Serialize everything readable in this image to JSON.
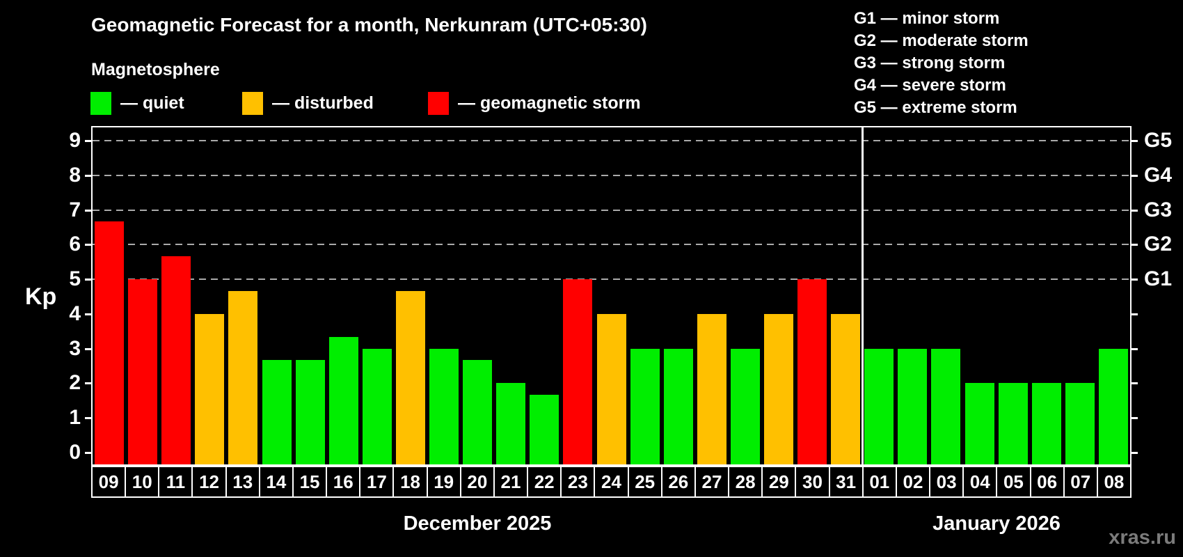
{
  "header": {
    "title": "Geomagnetic Forecast for a month, Nerkunram (UTC+05:30)",
    "subtitle": "Magnetosphere"
  },
  "legend": {
    "items": [
      {
        "status": "quiet",
        "label": "— quiet",
        "color": "#00ee00"
      },
      {
        "status": "disturbed",
        "label": "— disturbed",
        "color": "#ffc000"
      },
      {
        "status": "storm",
        "label": "— geomagnetic storm",
        "color": "#ff0000"
      }
    ]
  },
  "g_scale": [
    "G1 — minor storm",
    "G2 — moderate storm",
    "G3 — strong storm",
    "G4 — severe storm",
    "G5 — extreme storm"
  ],
  "watermark": "xras.ru",
  "chart_data": {
    "type": "bar",
    "title": "Geomagnetic Forecast for a month, Nerkunram (UTC+05:30)",
    "ylabel": "Kp",
    "ylim": [
      0,
      9
    ],
    "yticks": [
      0,
      1,
      2,
      3,
      4,
      5,
      6,
      7,
      8,
      9
    ],
    "gridlines_at": [
      5,
      6,
      7,
      8,
      9
    ],
    "grid": "horizontal dashed at storm levels only",
    "legend_position": "top-left",
    "right_axis_labels": [
      {
        "kp": 5,
        "label": "G1"
      },
      {
        "kp": 6,
        "label": "G2"
      },
      {
        "kp": 7,
        "label": "G3"
      },
      {
        "kp": 8,
        "label": "G4"
      },
      {
        "kp": 9,
        "label": "G5"
      }
    ],
    "status_colors": {
      "quiet": "#00ee00",
      "disturbed": "#ffc000",
      "storm": "#ff0000"
    },
    "groups": [
      {
        "label": "December 2025",
        "days": [
          "09",
          "10",
          "11",
          "12",
          "13",
          "14",
          "15",
          "16",
          "17",
          "18",
          "19",
          "20",
          "21",
          "22",
          "23",
          "24",
          "25",
          "26",
          "27",
          "28",
          "29",
          "30",
          "31"
        ],
        "values": [
          6.67,
          5,
          5.67,
          4,
          4.67,
          2.67,
          2.67,
          3.33,
          3,
          4.67,
          3,
          2.67,
          2,
          1.67,
          5,
          4,
          3,
          3,
          4,
          3,
          4,
          5,
          4
        ],
        "statuses": [
          "storm",
          "storm",
          "storm",
          "disturbed",
          "disturbed",
          "quiet",
          "quiet",
          "quiet",
          "quiet",
          "disturbed",
          "quiet",
          "quiet",
          "quiet",
          "quiet",
          "storm",
          "disturbed",
          "quiet",
          "quiet",
          "disturbed",
          "quiet",
          "disturbed",
          "storm",
          "disturbed"
        ]
      },
      {
        "label": "January 2026",
        "days": [
          "01",
          "02",
          "03",
          "04",
          "05",
          "06",
          "07",
          "08"
        ],
        "values": [
          3,
          3,
          3,
          2,
          2,
          2,
          2,
          3
        ],
        "statuses": [
          "quiet",
          "quiet",
          "quiet",
          "quiet",
          "quiet",
          "quiet",
          "quiet",
          "quiet"
        ]
      }
    ]
  }
}
